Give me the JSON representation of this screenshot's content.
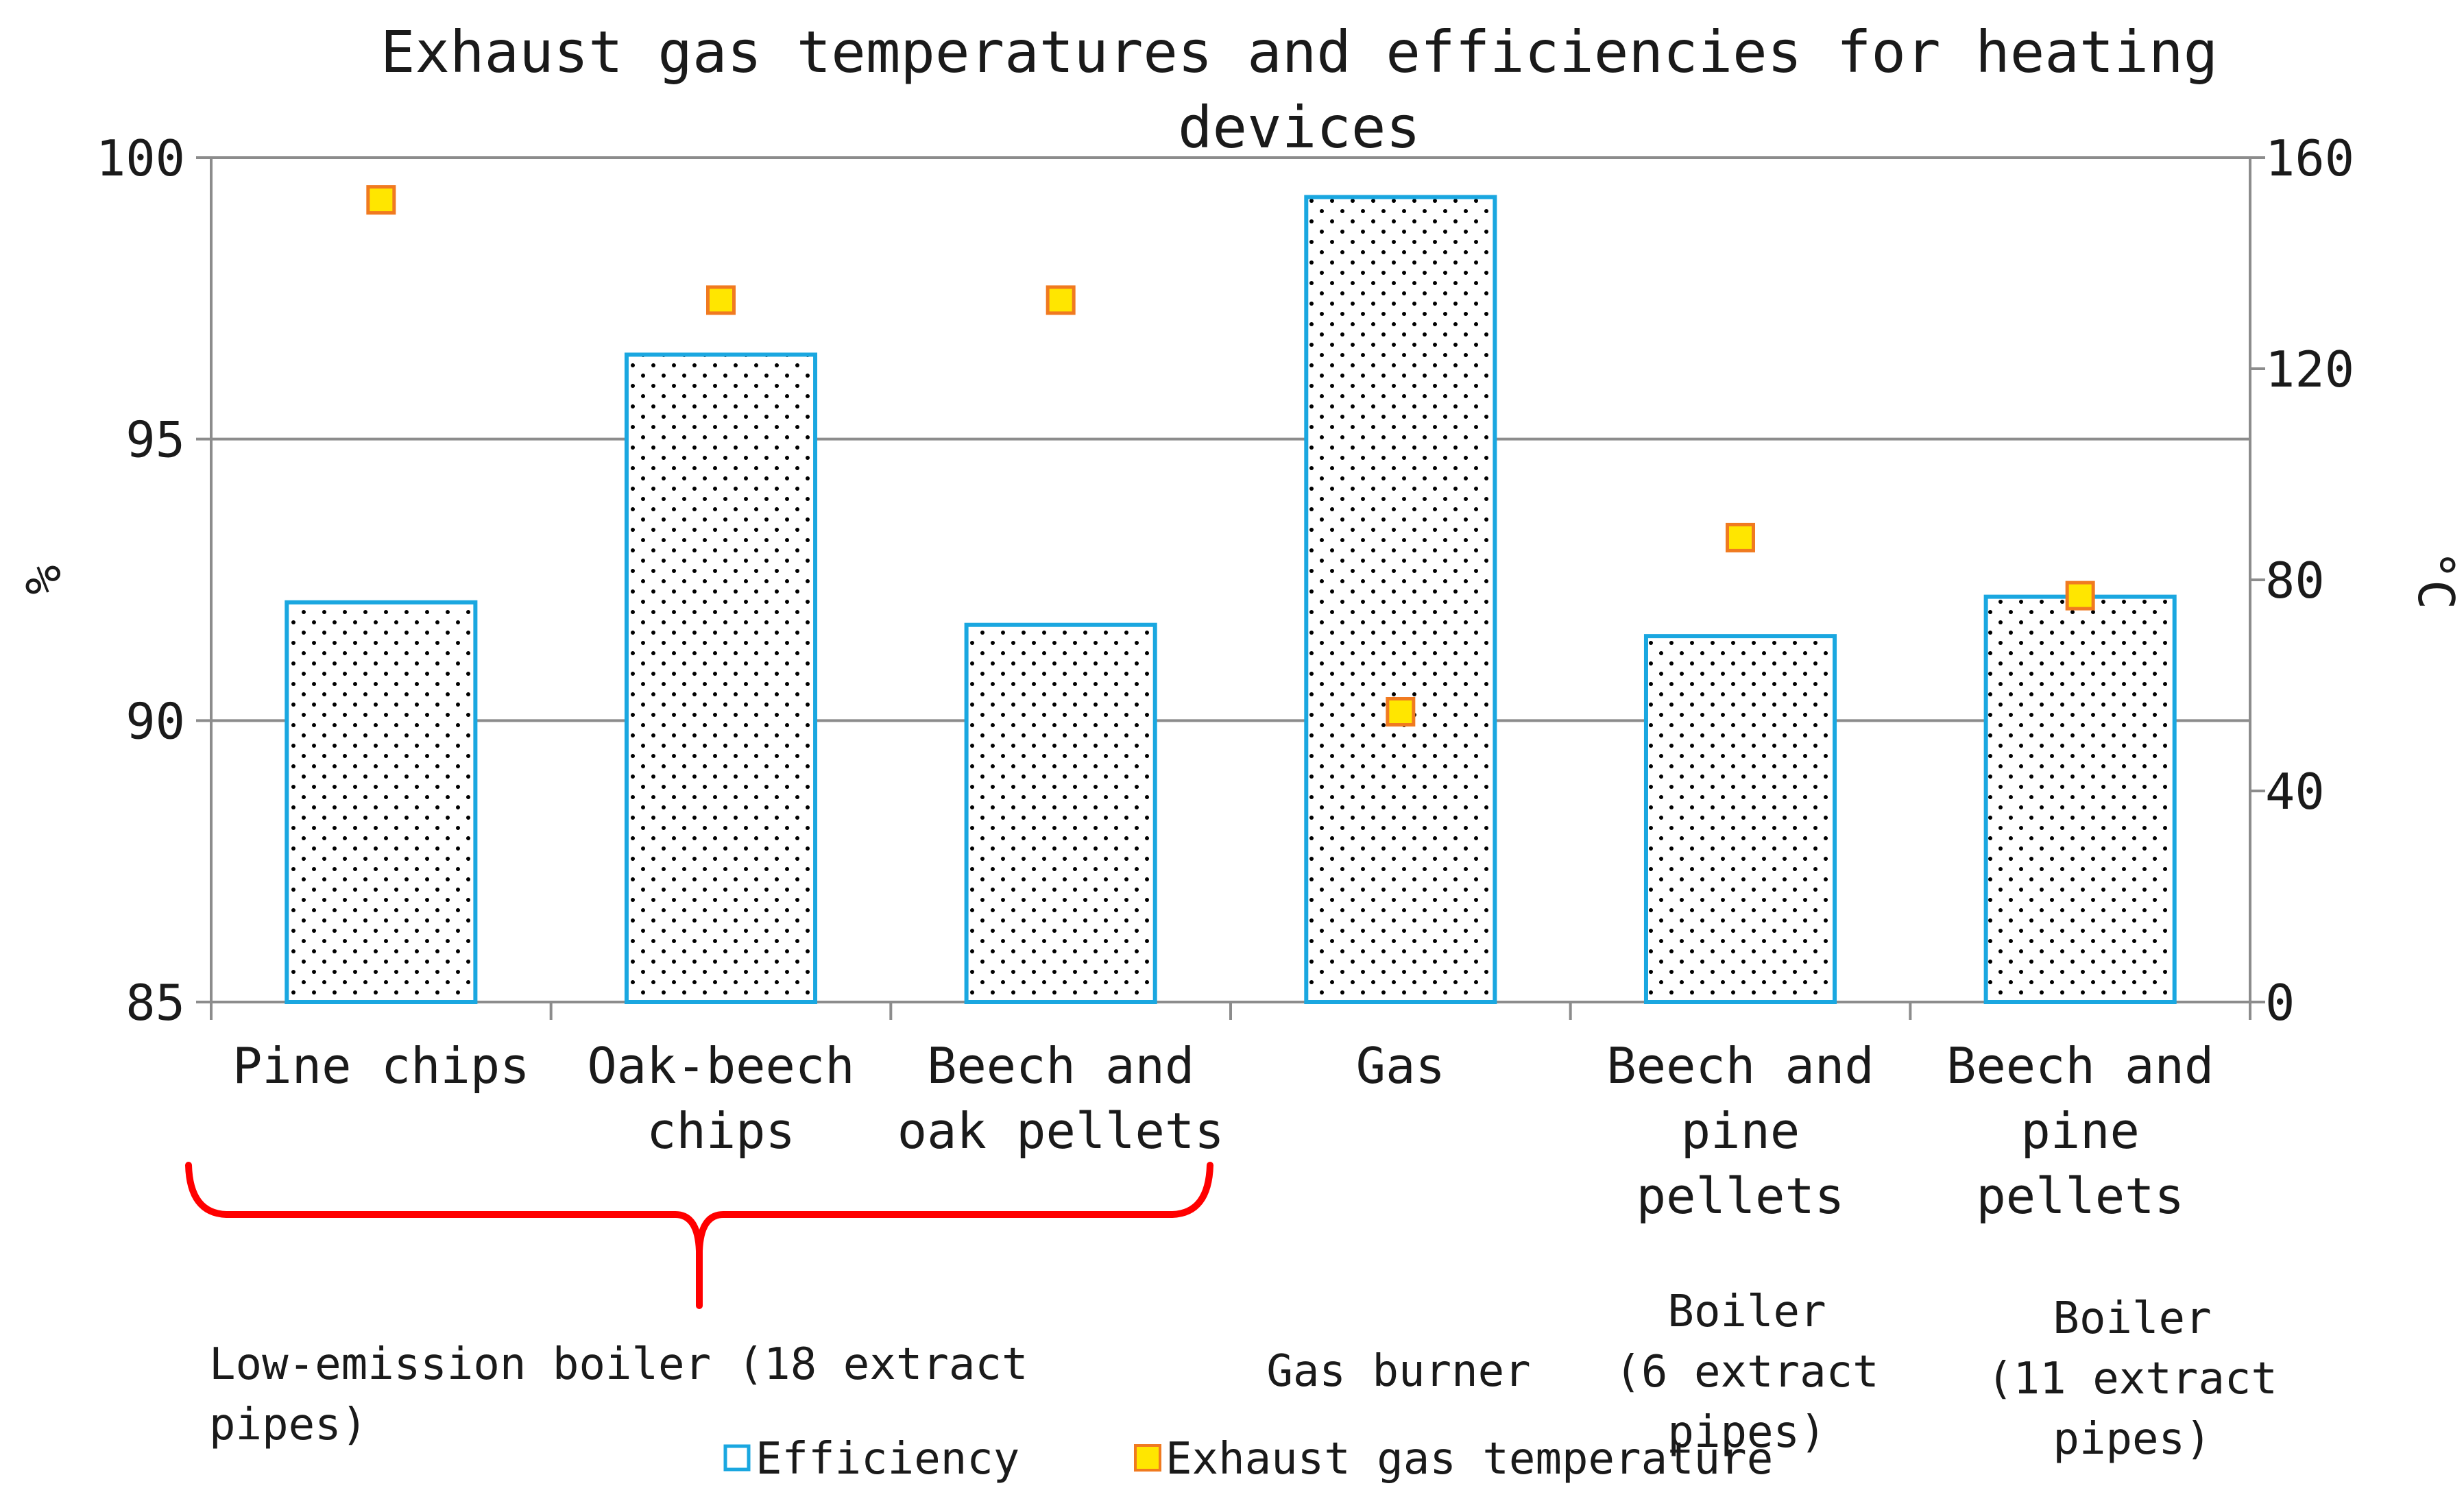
{
  "chart_data": {
    "type": "bar",
    "title": "Exhaust gas temperatures and efficiencies for heating devices",
    "categories": [
      [
        "Pine chips"
      ],
      [
        "Oak-beech",
        "chips"
      ],
      [
        "Beech and",
        "oak pellets"
      ],
      [
        "Gas"
      ],
      [
        "Beech and",
        "pine",
        "pellets"
      ],
      [
        "Beech and",
        "pine",
        "pellets"
      ]
    ],
    "series": [
      {
        "name": "Efficiency",
        "type": "bar",
        "axis": "left",
        "color": "#1aa7e0",
        "values": [
          92.1,
          96.5,
          91.7,
          99.3,
          91.5,
          92.2
        ]
      },
      {
        "name": "Exhaust gas temperature",
        "type": "scatter",
        "axis": "right",
        "color": "#ffe600",
        "edge": "#f07a20",
        "values": [
          152,
          133,
          133,
          55,
          88,
          77
        ]
      }
    ],
    "ylabel": "%",
    "ylim": [
      85,
      100
    ],
    "yticks": [
      "85",
      "90",
      "95",
      "100"
    ],
    "y2label": "°C",
    "y2lim": [
      0,
      160
    ],
    "y2ticks": [
      "0",
      "40",
      "80",
      "120",
      "160"
    ],
    "grid": true,
    "legend_position": "bottom",
    "groups": [
      {
        "label": "Low-emission boiler (18 extract pipes)",
        "lines": [
          "Low-emission boiler (18 extract",
          "pipes)"
        ],
        "brace_color": "#ff0000"
      },
      {
        "label": "Gas burner",
        "lines": [
          "Gas burner"
        ]
      },
      {
        "label": "Boiler (6 extract pipes)",
        "lines": [
          "Boiler",
          "(6 extract",
          "pipes)"
        ]
      },
      {
        "label": "Boiler (11 extract pipes)",
        "lines": [
          "Boiler",
          "(11 extract",
          "pipes)"
        ]
      }
    ]
  }
}
